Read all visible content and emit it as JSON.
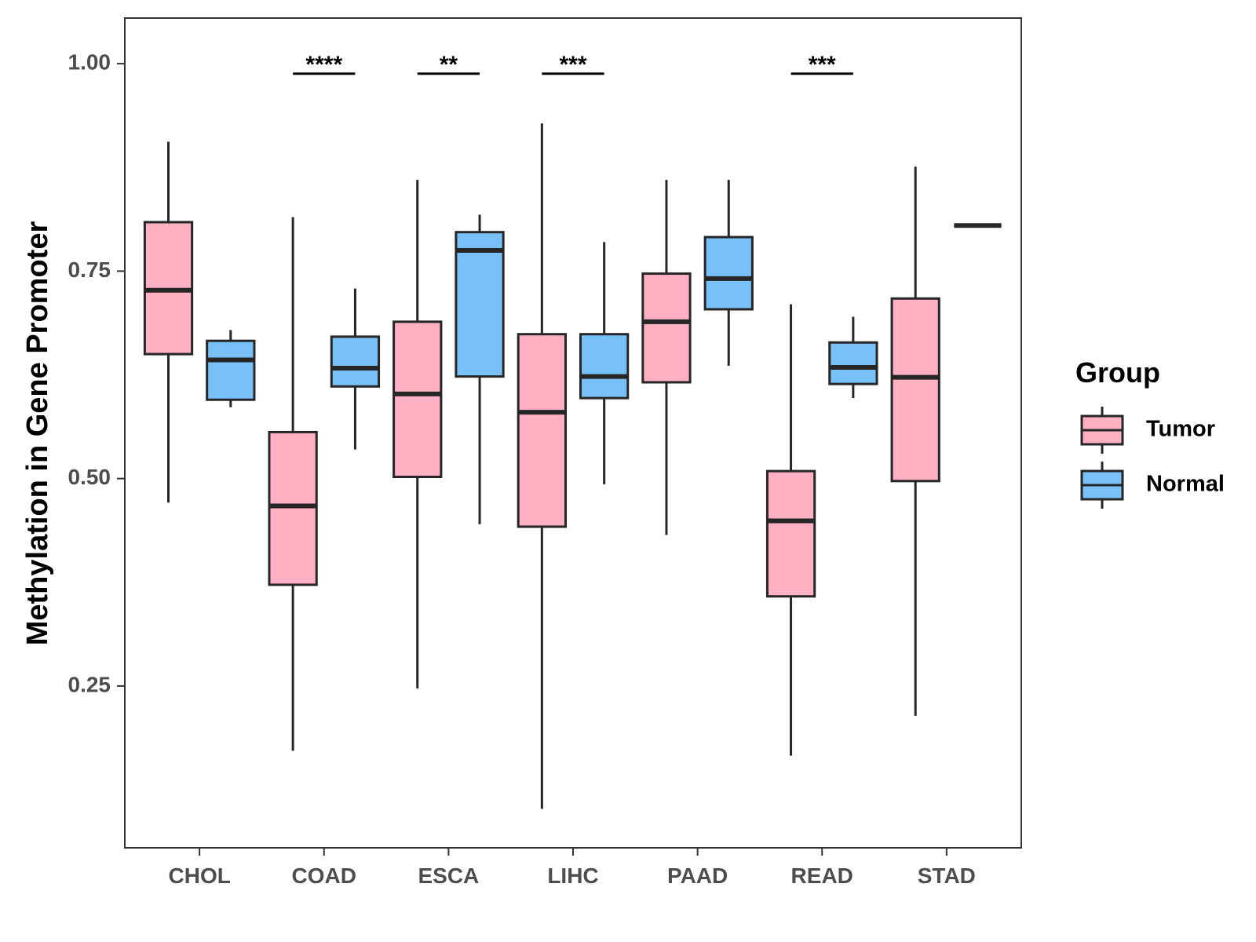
{
  "chart_data": {
    "type": "boxplot",
    "title": "",
    "xlabel": "",
    "ylabel": "Methylation in Gene Promoter",
    "ylim": [
      0.055,
      1.055
    ],
    "yticks": [
      0.25,
      0.5,
      0.75,
      1.0
    ],
    "ytick_labels": [
      "0.25",
      "0.50",
      "0.75",
      "1.00"
    ],
    "categories": [
      "CHOL",
      "COAD",
      "ESCA",
      "LIHC",
      "PAAD",
      "READ",
      "STAD"
    ],
    "legend": {
      "title": "Group",
      "placement": "right",
      "entries": [
        {
          "name": "Tumor",
          "color": "#FFB0C3"
        },
        {
          "name": "Normal",
          "color": "#78C0F8"
        }
      ]
    },
    "series": [
      {
        "name": "Tumor",
        "color": "#FFB0C3",
        "boxes": [
          {
            "category": "CHOL",
            "whisker_low": 0.471,
            "q1": 0.65,
            "median": 0.727,
            "q3": 0.809,
            "whisker_high": 0.906
          },
          {
            "category": "COAD",
            "whisker_low": 0.172,
            "q1": 0.372,
            "median": 0.467,
            "q3": 0.556,
            "whisker_high": 0.815
          },
          {
            "category": "ESCA",
            "whisker_low": 0.247,
            "q1": 0.502,
            "median": 0.602,
            "q3": 0.689,
            "whisker_high": 0.86
          },
          {
            "category": "LIHC",
            "whisker_low": 0.102,
            "q1": 0.442,
            "median": 0.58,
            "q3": 0.674,
            "whisker_high": 0.928
          },
          {
            "category": "PAAD",
            "whisker_low": 0.432,
            "q1": 0.616,
            "median": 0.689,
            "q3": 0.747,
            "whisker_high": 0.86
          },
          {
            "category": "READ",
            "whisker_low": 0.166,
            "q1": 0.358,
            "median": 0.449,
            "q3": 0.509,
            "whisker_high": 0.71
          },
          {
            "category": "STAD",
            "whisker_low": 0.214,
            "q1": 0.497,
            "median": 0.622,
            "q3": 0.717,
            "whisker_high": 0.876
          }
        ]
      },
      {
        "name": "Normal",
        "color": "#78C0F8",
        "boxes": [
          {
            "category": "CHOL",
            "whisker_low": 0.586,
            "q1": 0.595,
            "median": 0.643,
            "q3": 0.666,
            "whisker_high": 0.679
          },
          {
            "category": "COAD",
            "whisker_low": 0.535,
            "q1": 0.611,
            "median": 0.633,
            "q3": 0.671,
            "whisker_high": 0.729
          },
          {
            "category": "ESCA",
            "whisker_low": 0.445,
            "q1": 0.623,
            "median": 0.775,
            "q3": 0.797,
            "whisker_high": 0.818
          },
          {
            "category": "LIHC",
            "whisker_low": 0.493,
            "q1": 0.597,
            "median": 0.623,
            "q3": 0.674,
            "whisker_high": 0.785
          },
          {
            "category": "PAAD",
            "whisker_low": 0.636,
            "q1": 0.704,
            "median": 0.741,
            "q3": 0.791,
            "whisker_high": 0.86
          },
          {
            "category": "READ",
            "whisker_low": 0.597,
            "q1": 0.614,
            "median": 0.634,
            "q3": 0.664,
            "whisker_high": 0.695
          },
          {
            "category": "STAD",
            "whisker_low": 0.805,
            "q1": 0.805,
            "median": 0.805,
            "q3": 0.805,
            "whisker_high": 0.805
          }
        ]
      }
    ],
    "annotations": [
      {
        "category": "COAD",
        "text": "****",
        "y": 0.988
      },
      {
        "category": "ESCA",
        "text": "**",
        "y": 0.988
      },
      {
        "category": "LIHC",
        "text": "***",
        "y": 0.988
      },
      {
        "category": "READ",
        "text": "***",
        "y": 0.988
      }
    ]
  }
}
